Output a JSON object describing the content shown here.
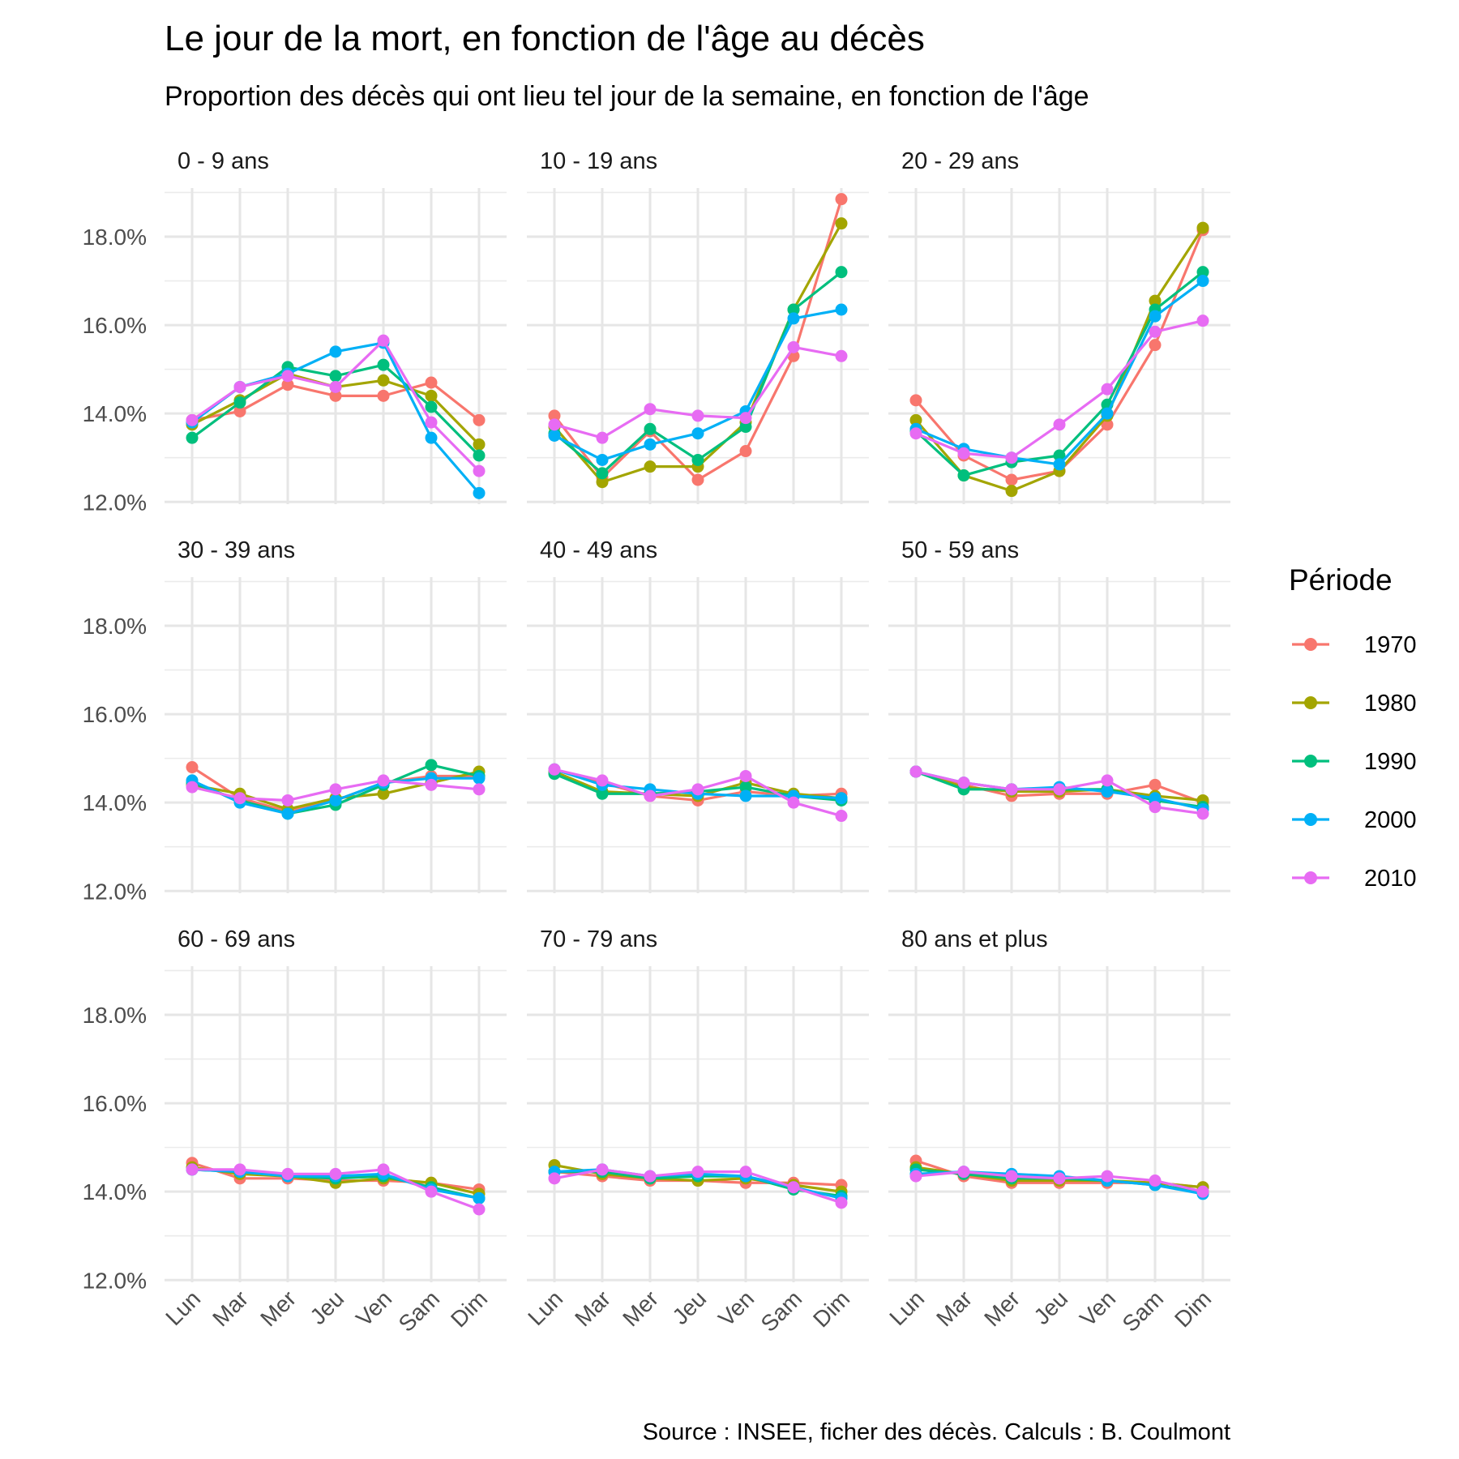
{
  "chart_data": {
    "type": "line",
    "title": "Le jour de la mort, en fonction de l'âge au décès",
    "subtitle": "Proportion des décès qui ont lieu tel jour de la semaine, en fonction de l'âge",
    "caption": "Source : INSEE, ficher des décès. Calculs : B. Coulmont",
    "xlabel": "",
    "ylabel": "",
    "categories": [
      "Lun",
      "Mar",
      "Mer",
      "Jeu",
      "Ven",
      "Sam",
      "Dim"
    ],
    "yticks": [
      "12.0%",
      "14.0%",
      "16.0%",
      "18.0%"
    ],
    "ylim": [
      11.95,
      19.1
    ],
    "grid": true,
    "legend": {
      "title": "Période",
      "position": "right",
      "items": [
        "1970",
        "1980",
        "1990",
        "2000",
        "2010"
      ]
    },
    "colors": {
      "1970": "#F8766D",
      "1980": "#A3A500",
      "1990": "#00BF7D",
      "2000": "#00B0F6",
      "2010": "#E76BF3"
    },
    "panels": [
      {
        "label": "0 - 9 ans",
        "series": [
          {
            "name": "1970",
            "values": [
              13.85,
              14.05,
              14.65,
              14.4,
              14.4,
              14.7,
              13.85
            ]
          },
          {
            "name": "1980",
            "values": [
              13.75,
              14.3,
              14.9,
              14.6,
              14.75,
              14.4,
              13.3
            ]
          },
          {
            "name": "1990",
            "values": [
              13.45,
              14.25,
              15.05,
              14.85,
              15.1,
              14.15,
              13.05
            ]
          },
          {
            "name": "2000",
            "values": [
              13.8,
              14.6,
              14.9,
              15.4,
              15.6,
              13.45,
              12.2
            ]
          },
          {
            "name": "2010",
            "values": [
              13.85,
              14.6,
              14.85,
              14.6,
              15.65,
              13.8,
              12.7
            ]
          }
        ]
      },
      {
        "label": "10 - 19 ans",
        "series": [
          {
            "name": "1970",
            "values": [
              13.95,
              12.55,
              13.6,
              12.5,
              13.15,
              15.3,
              18.85
            ]
          },
          {
            "name": "1980",
            "values": [
              13.7,
              12.45,
              12.8,
              12.8,
              13.8,
              16.35,
              18.3
            ]
          },
          {
            "name": "1990",
            "values": [
              13.55,
              12.65,
              13.65,
              12.95,
              13.7,
              16.35,
              17.2
            ]
          },
          {
            "name": "2000",
            "values": [
              13.5,
              12.95,
              13.3,
              13.55,
              14.05,
              16.15,
              16.35
            ]
          },
          {
            "name": "2010",
            "values": [
              13.75,
              13.45,
              14.1,
              13.95,
              13.9,
              15.5,
              15.3
            ]
          }
        ]
      },
      {
        "label": "20 - 29 ans",
        "series": [
          {
            "name": "1970",
            "values": [
              14.3,
              13.05,
              12.5,
              12.7,
              13.75,
              15.55,
              18.15
            ]
          },
          {
            "name": "1980",
            "values": [
              13.85,
              12.6,
              12.25,
              12.7,
              13.95,
              16.55,
              18.2
            ]
          },
          {
            "name": "1990",
            "values": [
              13.6,
              12.6,
              12.9,
              13.05,
              14.2,
              16.35,
              17.2
            ]
          },
          {
            "name": "2000",
            "values": [
              13.65,
              13.2,
              13.0,
              12.85,
              14.0,
              16.2,
              17.0
            ]
          },
          {
            "name": "2010",
            "values": [
              13.55,
              13.1,
              13.0,
              13.75,
              14.55,
              15.85,
              16.1
            ]
          }
        ]
      },
      {
        "label": "30 - 39 ans",
        "series": [
          {
            "name": "1970",
            "values": [
              14.8,
              14.1,
              13.8,
              14.05,
              14.45,
              14.6,
              14.6
            ]
          },
          {
            "name": "1980",
            "values": [
              14.4,
              14.2,
              13.85,
              14.1,
              14.2,
              14.45,
              14.7
            ]
          },
          {
            "name": "1990",
            "values": [
              14.45,
              14.05,
              13.75,
              13.95,
              14.4,
              14.85,
              14.6
            ]
          },
          {
            "name": "2000",
            "values": [
              14.5,
              14.0,
              13.75,
              14.05,
              14.45,
              14.55,
              14.55
            ]
          },
          {
            "name": "2010",
            "values": [
              14.35,
              14.1,
              14.05,
              14.3,
              14.5,
              14.4,
              14.3
            ]
          }
        ]
      },
      {
        "label": "40 - 49 ans",
        "series": [
          {
            "name": "1970",
            "values": [
              14.75,
              14.45,
              14.15,
              14.05,
              14.25,
              14.15,
              14.2
            ]
          },
          {
            "name": "1980",
            "values": [
              14.7,
              14.25,
              14.2,
              14.15,
              14.45,
              14.2,
              14.1
            ]
          },
          {
            "name": "1990",
            "values": [
              14.65,
              14.2,
              14.2,
              14.25,
              14.35,
              14.15,
              14.05
            ]
          },
          {
            "name": "2000",
            "values": [
              14.75,
              14.4,
              14.3,
              14.2,
              14.15,
              14.15,
              14.1
            ]
          },
          {
            "name": "2010",
            "values": [
              14.75,
              14.5,
              14.15,
              14.3,
              14.6,
              14.0,
              13.7
            ]
          }
        ]
      },
      {
        "label": "50 - 59 ans",
        "series": [
          {
            "name": "1970",
            "values": [
              14.7,
              14.4,
              14.15,
              14.2,
              14.2,
              14.4,
              14.0
            ]
          },
          {
            "name": "1980",
            "values": [
              14.7,
              14.35,
              14.25,
              14.25,
              14.3,
              14.15,
              14.05
            ]
          },
          {
            "name": "1990",
            "values": [
              14.7,
              14.3,
              14.3,
              14.3,
              14.3,
              14.05,
              13.9
            ]
          },
          {
            "name": "2000",
            "values": [
              14.7,
              14.45,
              14.3,
              14.35,
              14.25,
              14.1,
              13.85
            ]
          },
          {
            "name": "2010",
            "values": [
              14.7,
              14.45,
              14.3,
              14.3,
              14.5,
              13.9,
              13.75
            ]
          }
        ]
      },
      {
        "label": "60 - 69 ans",
        "series": [
          {
            "name": "1970",
            "values": [
              14.65,
              14.3,
              14.3,
              14.25,
              14.25,
              14.2,
              14.05
            ]
          },
          {
            "name": "1980",
            "values": [
              14.55,
              14.4,
              14.35,
              14.2,
              14.3,
              14.2,
              13.95
            ]
          },
          {
            "name": "1990",
            "values": [
              14.5,
              14.45,
              14.35,
              14.3,
              14.35,
              14.1,
              13.85
            ]
          },
          {
            "name": "2000",
            "values": [
              14.5,
              14.45,
              14.35,
              14.35,
              14.4,
              14.05,
              13.85
            ]
          },
          {
            "name": "2010",
            "values": [
              14.5,
              14.5,
              14.4,
              14.4,
              14.5,
              14.0,
              13.6
            ]
          }
        ]
      },
      {
        "label": "70 - 79 ans",
        "series": [
          {
            "name": "1970",
            "values": [
              14.45,
              14.35,
              14.25,
              14.25,
              14.2,
              14.2,
              14.15
            ]
          },
          {
            "name": "1980",
            "values": [
              14.6,
              14.4,
              14.3,
              14.25,
              14.3,
              14.15,
              14.0
            ]
          },
          {
            "name": "1990",
            "values": [
              14.45,
              14.45,
              14.3,
              14.35,
              14.35,
              14.05,
              13.9
            ]
          },
          {
            "name": "2000",
            "values": [
              14.45,
              14.5,
              14.35,
              14.4,
              14.35,
              14.1,
              13.85
            ]
          },
          {
            "name": "2010",
            "values": [
              14.3,
              14.5,
              14.35,
              14.45,
              14.45,
              14.1,
              13.75
            ]
          }
        ]
      },
      {
        "label": "80 ans et plus",
        "series": [
          {
            "name": "1970",
            "values": [
              14.7,
              14.35,
              14.2,
              14.2,
              14.2,
              14.2,
              14.1
            ]
          },
          {
            "name": "1980",
            "values": [
              14.55,
              14.4,
              14.25,
              14.25,
              14.25,
              14.2,
              14.1
            ]
          },
          {
            "name": "1990",
            "values": [
              14.5,
              14.4,
              14.3,
              14.3,
              14.25,
              14.15,
              14.0
            ]
          },
          {
            "name": "2000",
            "values": [
              14.4,
              14.45,
              14.4,
              14.35,
              14.25,
              14.15,
              13.95
            ]
          },
          {
            "name": "2010",
            "values": [
              14.35,
              14.45,
              14.35,
              14.3,
              14.35,
              14.25,
              14.0
            ]
          }
        ]
      }
    ]
  }
}
